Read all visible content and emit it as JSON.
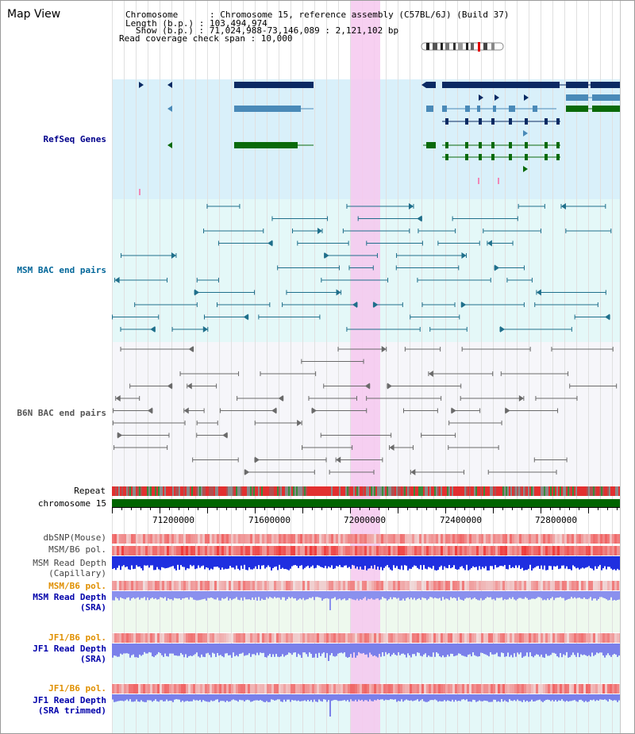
{
  "header": {
    "title": "Map View",
    "info_lines": [
      "Chromosome      : Chromosome 15, reference assembly (C57BL/6J) (Build 37)",
      "Length (b.p.) : 103,494,974",
      "Show (b.p.) : 71,024,988-73,146,089 : 2,121,102 bp",
      "Read coverage check span : 10,000"
    ]
  },
  "tracks": {
    "refseq_label": "RefSeq Genes",
    "msm_bac_label": "MSM BAC end pairs",
    "b6n_bac_label": "B6N BAC end pairs",
    "repeat_label": "Repeat",
    "chromosome_label": "chromosome 15",
    "dbsnp_label": "dbSNP(Mouse)",
    "msm_b6_pol_label_1": "MSM/B6 pol.",
    "msm_read_depth_cap_label": "MSM Read Depth\n(Capillary)",
    "msm_b6_pol_label_2": "MSM/B6 pol.",
    "msm_read_depth_sra_label": "MSM Read Depth\n(SRA)",
    "jf1_b6_pol_label_1": "JF1/B6 pol.",
    "jf1_read_depth_sra_label": "JF1 Read Depth\n(SRA)",
    "jf1_b6_pol_label_2": "JF1/B6 pol.",
    "jf1_read_depth_trim_label": "JF1 Read Depth\n(SRA trimmed)"
  },
  "axis": {
    "ticks": [
      "71200000",
      "71600000",
      "72000000",
      "72400000",
      "72800000"
    ]
  },
  "colors": {
    "refseq_bg": "#d9f0fa",
    "msm_bg": "#e4f8f8",
    "b6n_bg": "#f6f6fa",
    "highlight": "#f6c8ee",
    "refseq_label": "#00008b",
    "msm_label": "#006699",
    "b6n_label": "#555555",
    "pol_label": "#e09000",
    "depth_label": "#0000aa",
    "chromosome_bar": "#006400"
  }
}
